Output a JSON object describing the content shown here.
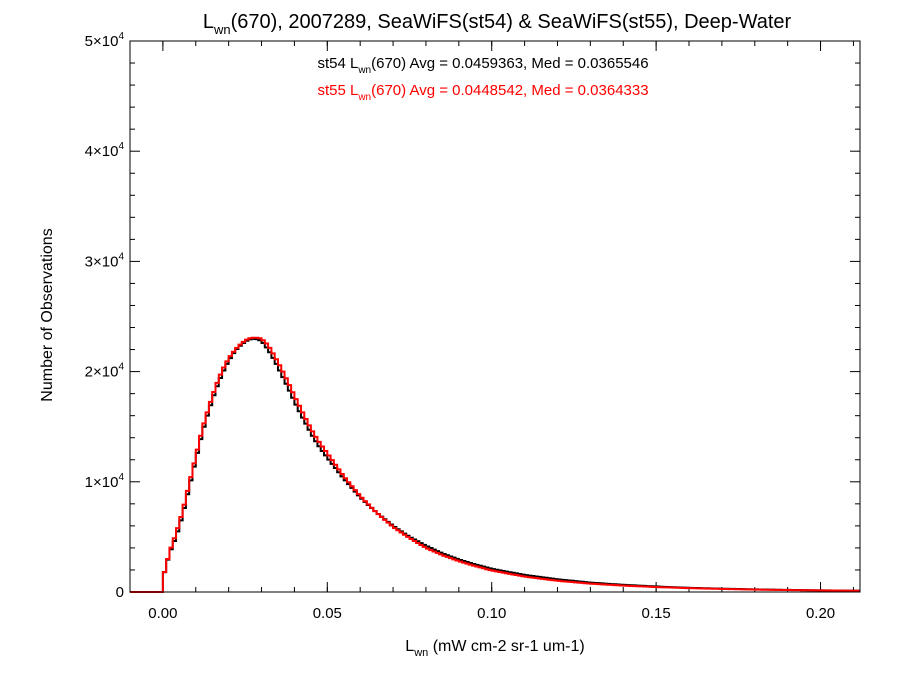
{
  "chart_data": {
    "type": "histogram",
    "title": {
      "main": "L",
      "sub": "wn",
      "rest": "(670), 2007289, SeaWiFS(st54) & SeaWiFS(st55), Deep-Water"
    },
    "xlabel": {
      "main": "L",
      "sub": "wn",
      "units": " (mW cm-2 sr-1 um-1)"
    },
    "ylabel": "Number of Observations",
    "xlim": [
      -0.01,
      0.212
    ],
    "ylim": [
      0,
      50000
    ],
    "x_ticks": [
      {
        "value": 0.0,
        "label": "0.00"
      },
      {
        "value": 0.05,
        "label": "0.05"
      },
      {
        "value": 0.1,
        "label": "0.10"
      },
      {
        "value": 0.15,
        "label": "0.15"
      },
      {
        "value": 0.2,
        "label": "0.20"
      }
    ],
    "y_ticks": [
      {
        "value": 0,
        "label": "0",
        "exp": ""
      },
      {
        "value": 10000,
        "label": "1×10",
        "exp": "4"
      },
      {
        "value": 20000,
        "label": "2×10",
        "exp": "4"
      },
      {
        "value": 30000,
        "label": "3×10",
        "exp": "4"
      },
      {
        "value": 40000,
        "label": "4×10",
        "exp": "4"
      },
      {
        "value": 50000,
        "label": "5×10",
        "exp": "4"
      }
    ],
    "annotations": [
      {
        "series": "st54",
        "prefix": "st54 L",
        "sub": "wn",
        "suffix": "(670) Avg = 0.0459363, Med = 0.0365546",
        "color": "#000000"
      },
      {
        "series": "st55",
        "prefix": "st55 L",
        "sub": "wn",
        "suffix": "(670) Avg = 0.0448542, Med = 0.0364333",
        "color": "#ff0000"
      }
    ],
    "bin_width": 0.001,
    "series": [
      {
        "name": "st54",
        "color": "#000000",
        "points": [
          [
            0.0,
            0
          ],
          [
            0.0005,
            1800
          ],
          [
            0.002,
            3500
          ],
          [
            0.004,
            5000
          ],
          [
            0.006,
            7000
          ],
          [
            0.008,
            9500
          ],
          [
            0.01,
            12000
          ],
          [
            0.012,
            14500
          ],
          [
            0.014,
            16500
          ],
          [
            0.016,
            18300
          ],
          [
            0.018,
            19800
          ],
          [
            0.02,
            21000
          ],
          [
            0.022,
            21900
          ],
          [
            0.024,
            22500
          ],
          [
            0.026,
            22900
          ],
          [
            0.028,
            23000
          ],
          [
            0.03,
            22800
          ],
          [
            0.032,
            22000
          ],
          [
            0.034,
            21000
          ],
          [
            0.036,
            19800
          ],
          [
            0.038,
            18600
          ],
          [
            0.04,
            17300
          ],
          [
            0.042,
            16100
          ],
          [
            0.044,
            15000
          ],
          [
            0.046,
            13900
          ],
          [
            0.048,
            13000
          ],
          [
            0.05,
            12200
          ],
          [
            0.055,
            10300
          ],
          [
            0.06,
            8600
          ],
          [
            0.065,
            7200
          ],
          [
            0.07,
            6000
          ],
          [
            0.075,
            5000
          ],
          [
            0.08,
            4200
          ],
          [
            0.085,
            3500
          ],
          [
            0.09,
            2950
          ],
          [
            0.095,
            2500
          ],
          [
            0.1,
            2100
          ],
          [
            0.11,
            1550
          ],
          [
            0.12,
            1150
          ],
          [
            0.13,
            850
          ],
          [
            0.14,
            650
          ],
          [
            0.15,
            500
          ],
          [
            0.16,
            380
          ],
          [
            0.17,
            300
          ],
          [
            0.18,
            240
          ],
          [
            0.19,
            190
          ],
          [
            0.2,
            150
          ],
          [
            0.211,
            120
          ]
        ]
      },
      {
        "name": "st55",
        "color": "#ff0000",
        "points": [
          [
            0.0,
            0
          ],
          [
            0.0005,
            1800
          ],
          [
            0.002,
            3600
          ],
          [
            0.004,
            5300
          ],
          [
            0.006,
            7300
          ],
          [
            0.008,
            9800
          ],
          [
            0.01,
            12300
          ],
          [
            0.012,
            14800
          ],
          [
            0.014,
            16800
          ],
          [
            0.016,
            18600
          ],
          [
            0.018,
            20100
          ],
          [
            0.02,
            21200
          ],
          [
            0.022,
            22000
          ],
          [
            0.024,
            22600
          ],
          [
            0.026,
            23000
          ],
          [
            0.028,
            23100
          ],
          [
            0.03,
            23000
          ],
          [
            0.032,
            22400
          ],
          [
            0.034,
            21400
          ],
          [
            0.036,
            20300
          ],
          [
            0.038,
            19100
          ],
          [
            0.04,
            17800
          ],
          [
            0.042,
            16600
          ],
          [
            0.044,
            15400
          ],
          [
            0.046,
            14300
          ],
          [
            0.048,
            13400
          ],
          [
            0.05,
            12600
          ],
          [
            0.055,
            10500
          ],
          [
            0.06,
            8700
          ],
          [
            0.065,
            7200
          ],
          [
            0.07,
            5900
          ],
          [
            0.075,
            4900
          ],
          [
            0.08,
            4000
          ],
          [
            0.085,
            3350
          ],
          [
            0.09,
            2800
          ],
          [
            0.095,
            2350
          ],
          [
            0.1,
            1950
          ],
          [
            0.11,
            1400
          ],
          [
            0.12,
            1020
          ],
          [
            0.13,
            760
          ],
          [
            0.14,
            580
          ],
          [
            0.15,
            450
          ],
          [
            0.16,
            350
          ],
          [
            0.17,
            280
          ],
          [
            0.18,
            220
          ],
          [
            0.19,
            180
          ],
          [
            0.2,
            145
          ],
          [
            0.211,
            115
          ]
        ]
      }
    ]
  }
}
